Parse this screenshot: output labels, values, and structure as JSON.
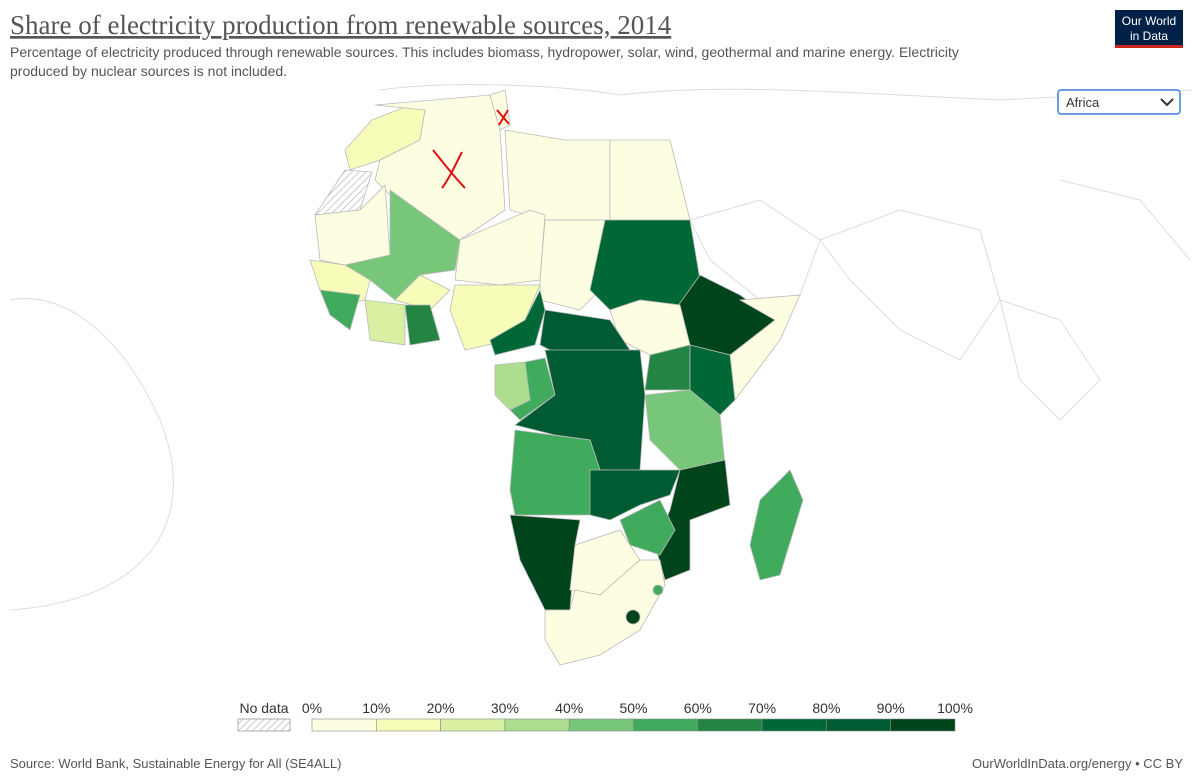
{
  "header": {
    "title": "Share of electricity production from renewable sources, 2014",
    "subtitle_lines": [
      "Percentage of electricity produced through renewable sources. This includes biomass, hydropower, solar, wind, geothermal and marine energy. Electricity",
      "produced by nuclear sources is not included."
    ],
    "logo_lines": [
      "Our World",
      "in Data"
    ]
  },
  "controls": {
    "region": "Africa"
  },
  "legend": {
    "no_data": "No data",
    "labels": [
      "0%",
      "10%",
      "20%",
      "30%",
      "40%",
      "50%",
      "60%",
      "70%",
      "80%",
      "90%",
      "100%"
    ],
    "colors": [
      "#fdfde2",
      "#f7fcb9",
      "#d9f0a3",
      "#addd8e",
      "#78c679",
      "#41ab5d",
      "#238443",
      "#006837",
      "#005a32",
      "#00441b"
    ]
  },
  "footer": {
    "source": "Source: World Bank, Sustainable Energy for All (SE4ALL)",
    "link": "OurWorldInData.org/energy • CC BY"
  }
}
